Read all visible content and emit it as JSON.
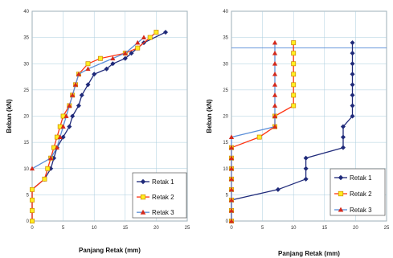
{
  "colors": {
    "grid": "#aaccdd",
    "axis": "#777777",
    "retak1": "#1f2a7a",
    "retak2_line": "#ff3311",
    "retak2_marker": "#ffee22",
    "retak2_edge": "#cc8800",
    "retak3_line": "#5a8ed8",
    "retak3_marker": "#d42a1c"
  },
  "chart_data": [
    {
      "type": "line",
      "xlabel": "Panjang Retak (mm)",
      "ylabel": "Beban (kN)",
      "xlim": [
        0,
        25
      ],
      "ylim": [
        0,
        40
      ],
      "xticks": [
        "0",
        "5",
        "10",
        "15",
        "20",
        "25"
      ],
      "yticks": [
        "0",
        "5",
        "10",
        "15",
        "20",
        "25",
        "30",
        "35",
        "40"
      ],
      "grid": true,
      "legend_position": "bottom-right",
      "series": [
        {
          "name": "Retak 1",
          "points": [
            [
              0,
              0
            ],
            [
              0,
              2
            ],
            [
              0,
              4
            ],
            [
              0,
              6
            ],
            [
              2,
              8
            ],
            [
              3,
              10
            ],
            [
              3.5,
              12
            ],
            [
              4,
              14
            ],
            [
              5,
              16
            ],
            [
              6,
              18
            ],
            [
              6.5,
              20
            ],
            [
              7.5,
              22
            ],
            [
              8,
              24
            ],
            [
              9,
              26
            ],
            [
              10,
              28
            ],
            [
              12,
              29
            ],
            [
              13,
              30
            ],
            [
              15,
              31
            ],
            [
              16,
              32
            ],
            [
              17,
              33
            ],
            [
              18,
              34
            ],
            [
              21.5,
              36
            ]
          ]
        },
        {
          "name": "Retak 2",
          "points": [
            [
              0,
              0
            ],
            [
              0,
              2
            ],
            [
              0,
              4
            ],
            [
              0,
              6
            ],
            [
              2,
              8
            ],
            [
              2.5,
              10
            ],
            [
              3,
              12
            ],
            [
              3.5,
              14
            ],
            [
              4,
              16
            ],
            [
              4.5,
              18
            ],
            [
              5,
              20
            ],
            [
              6,
              22
            ],
            [
              6.5,
              24
            ],
            [
              7,
              26
            ],
            [
              7.5,
              28
            ],
            [
              9,
              30
            ],
            [
              11,
              31
            ],
            [
              15,
              32
            ],
            [
              17,
              33
            ],
            [
              19,
              35
            ],
            [
              20,
              36
            ]
          ]
        },
        {
          "name": "Retak 3",
          "points": [
            [
              0,
              10
            ],
            [
              3,
              12
            ],
            [
              4,
              14
            ],
            [
              4.5,
              16
            ],
            [
              5,
              18
            ],
            [
              5.5,
              20
            ],
            [
              6,
              22
            ],
            [
              6.5,
              24
            ],
            [
              7,
              26
            ],
            [
              7.5,
              28
            ],
            [
              9,
              29
            ],
            [
              13,
              31
            ],
            [
              15,
              32
            ],
            [
              17,
              34
            ],
            [
              18,
              35
            ]
          ]
        }
      ]
    },
    {
      "type": "line",
      "xlabel": "Panjang Retak (mm)",
      "ylabel": "Beban (kN)",
      "xlim": [
        0,
        25
      ],
      "ylim": [
        0,
        40
      ],
      "xticks": [
        "0",
        "5",
        "10",
        "15",
        "20",
        "25"
      ],
      "yticks": [
        "0",
        "5",
        "10",
        "15",
        "20",
        "25",
        "30",
        "35",
        "40"
      ],
      "grid": true,
      "hline": 33,
      "legend_position": "bottom-right",
      "series": [
        {
          "name": "Retak 1",
          "points": [
            [
              0,
              0
            ],
            [
              0,
              2
            ],
            [
              0,
              4
            ],
            [
              7.5,
              6
            ],
            [
              12,
              8
            ],
            [
              12,
              10
            ],
            [
              12,
              12
            ],
            [
              18,
              14
            ],
            [
              18,
              16
            ],
            [
              18,
              18
            ],
            [
              19.5,
              20
            ],
            [
              19.5,
              22
            ],
            [
              19.5,
              24
            ],
            [
              19.5,
              26
            ],
            [
              19.5,
              28
            ],
            [
              19.5,
              30
            ],
            [
              19.5,
              32
            ],
            [
              19.5,
              34
            ]
          ]
        },
        {
          "name": "Retak 2",
          "points": [
            [
              0,
              0
            ],
            [
              0,
              2
            ],
            [
              0,
              4
            ],
            [
              0,
              6
            ],
            [
              0,
              8
            ],
            [
              0,
              10
            ],
            [
              0,
              12
            ],
            [
              0,
              14
            ],
            [
              4.5,
              16
            ],
            [
              7,
              18
            ],
            [
              7,
              20
            ],
            [
              10,
              22
            ],
            [
              10,
              24
            ],
            [
              10,
              26
            ],
            [
              10,
              28
            ],
            [
              10,
              30
            ],
            [
              10,
              32
            ],
            [
              10,
              34
            ]
          ]
        },
        {
          "name": "Retak 3",
          "points": [
            [
              0,
              0
            ],
            [
              0,
              2
            ],
            [
              0,
              4
            ],
            [
              0,
              6
            ],
            [
              0,
              8
            ],
            [
              0,
              10
            ],
            [
              0,
              12
            ],
            [
              0,
              14
            ],
            [
              0,
              16
            ],
            [
              7,
              18
            ],
            [
              7,
              20
            ],
            [
              7,
              22
            ],
            [
              7,
              24
            ],
            [
              7,
              26
            ],
            [
              7,
              28
            ],
            [
              7,
              30
            ],
            [
              7,
              32
            ],
            [
              7,
              34
            ]
          ]
        }
      ]
    }
  ]
}
